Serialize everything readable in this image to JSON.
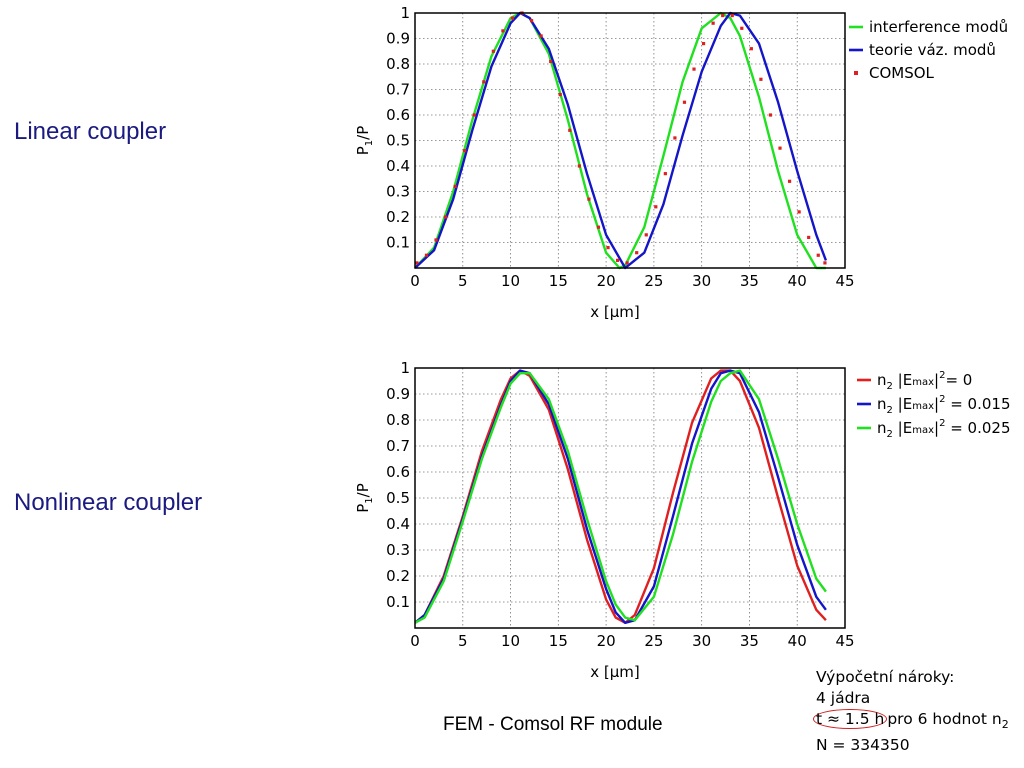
{
  "labels": {
    "linear": "Linear coupler",
    "nonlinear": "Nonlinear coupler"
  },
  "footer": {
    "caption": "FEM - Comsol RF module",
    "notes_title": "Výpočetní nároky:",
    "notes_cores": "4 jádra",
    "notes_time": "t ≈ 1.5 h",
    "notes_time_rest": "pro 6 hodnot n",
    "notes_time_sub": "2",
    "notes_n": "N = 334350"
  },
  "colors": {
    "red": "#e02020",
    "blue": "#1414c8",
    "green": "#20e020",
    "label_navy": "#1a1a80"
  },
  "chart_data": [
    {
      "type": "line",
      "xlabel": "x [μm]",
      "ylabel": "P",
      "ylabel_sub": "1",
      "ylabel_tail": "/P",
      "xlim": [
        0,
        45
      ],
      "ylim": [
        0,
        1
      ],
      "xticks": [
        0,
        5,
        10,
        15,
        20,
        25,
        30,
        35,
        40,
        45
      ],
      "yticks": [
        0.1,
        0.2,
        0.3,
        0.4,
        0.5,
        0.6,
        0.7,
        0.8,
        0.9,
        1
      ],
      "grid": true,
      "legend_position": "right",
      "series": [
        {
          "name": "interference modů",
          "color": "#20e020",
          "style": "line",
          "x": [
            0,
            2,
            4,
            6,
            8,
            10,
            11,
            12,
            14,
            16,
            18,
            20,
            21.4,
            22,
            24,
            26,
            28,
            30,
            32,
            33,
            34,
            36,
            38,
            40,
            42,
            43
          ],
          "y": [
            0.0,
            0.08,
            0.3,
            0.58,
            0.83,
            0.98,
            1.0,
            0.98,
            0.84,
            0.58,
            0.29,
            0.06,
            0.0,
            0.01,
            0.16,
            0.44,
            0.73,
            0.94,
            1.0,
            0.98,
            0.91,
            0.67,
            0.38,
            0.13,
            0.0,
            0.0
          ]
        },
        {
          "name": "teorie váz. modů",
          "color": "#1414c8",
          "style": "line",
          "x": [
            0,
            2,
            4,
            6,
            8,
            10,
            11,
            12,
            14,
            16,
            18,
            20,
            22,
            24,
            26,
            28,
            30,
            32,
            33,
            34,
            36,
            38,
            40,
            42,
            43
          ],
          "y": [
            0.0,
            0.07,
            0.27,
            0.54,
            0.79,
            0.96,
            1.0,
            0.98,
            0.86,
            0.64,
            0.37,
            0.13,
            0.0,
            0.06,
            0.25,
            0.52,
            0.77,
            0.95,
            1.0,
            0.99,
            0.88,
            0.65,
            0.38,
            0.13,
            0.03
          ]
        },
        {
          "name": "COMSOL",
          "color": "#e02020",
          "style": "points",
          "x": [
            0.2,
            1.2,
            2.2,
            3.2,
            4.2,
            5.2,
            6.2,
            7.2,
            8.2,
            9.2,
            10.2,
            11.2,
            12.2,
            13.2,
            14.2,
            15.2,
            16.2,
            17.2,
            18.2,
            19.2,
            20.2,
            21.2,
            22.2,
            23.2,
            24.2,
            25.2,
            26.2,
            27.2,
            28.2,
            29.2,
            30.2,
            31.2,
            32.2,
            33.2,
            34.2,
            35.2,
            36.2,
            37.2,
            38.2,
            39.2,
            40.2,
            41.2,
            42.2,
            42.9
          ],
          "y": [
            0.02,
            0.05,
            0.11,
            0.2,
            0.32,
            0.46,
            0.6,
            0.73,
            0.85,
            0.93,
            0.98,
            1.0,
            0.97,
            0.91,
            0.81,
            0.68,
            0.54,
            0.4,
            0.27,
            0.16,
            0.08,
            0.03,
            0.02,
            0.06,
            0.13,
            0.24,
            0.37,
            0.51,
            0.65,
            0.78,
            0.88,
            0.96,
            0.99,
            0.99,
            0.94,
            0.86,
            0.74,
            0.6,
            0.47,
            0.34,
            0.22,
            0.12,
            0.05,
            0.02
          ]
        }
      ]
    },
    {
      "type": "line",
      "xlabel": "x [μm]",
      "ylabel": "P",
      "ylabel_sub": "1",
      "ylabel_tail": "/P",
      "xlim": [
        0,
        45
      ],
      "ylim": [
        0,
        1
      ],
      "xticks": [
        0,
        5,
        10,
        15,
        20,
        25,
        30,
        35,
        40,
        45
      ],
      "yticks": [
        0.1,
        0.2,
        0.3,
        0.4,
        0.5,
        0.6,
        0.7,
        0.8,
        0.9,
        1
      ],
      "grid": true,
      "legend_position": "right",
      "legend_entries": [
        {
          "prefix": "n",
          "sub": "2",
          "mid": " |E",
          "esub": "max",
          "sup": "2",
          "suffix": "= 0"
        },
        {
          "prefix": "n",
          "sub": "2",
          "mid": " |E",
          "esub": "max",
          "sup": "2",
          "suffix": " = 0.015"
        },
        {
          "prefix": "n",
          "sub": "2",
          "mid": " |E",
          "esub": "max",
          "sup": "2",
          "suffix": " = 0.025"
        }
      ],
      "series": [
        {
          "color": "#e02020",
          "style": "line",
          "x": [
            0,
            1,
            3,
            5,
            7,
            9,
            10,
            11,
            12,
            14,
            16,
            18,
            20,
            21,
            22,
            23,
            25,
            27,
            29,
            31,
            32,
            33,
            34,
            36,
            38,
            40,
            42,
            43
          ],
          "y": [
            0.02,
            0.05,
            0.2,
            0.43,
            0.68,
            0.88,
            0.96,
            0.99,
            0.97,
            0.84,
            0.61,
            0.34,
            0.11,
            0.04,
            0.02,
            0.05,
            0.23,
            0.52,
            0.79,
            0.96,
            0.99,
            0.99,
            0.95,
            0.77,
            0.5,
            0.24,
            0.07,
            0.03
          ]
        },
        {
          "color": "#1414c8",
          "style": "line",
          "x": [
            0,
            1,
            3,
            5,
            7,
            9,
            10,
            11,
            12,
            14,
            16,
            18,
            20,
            21,
            22,
            23,
            25,
            27,
            29,
            31,
            32,
            33,
            34,
            36,
            38,
            40,
            42,
            43
          ],
          "y": [
            0.02,
            0.05,
            0.19,
            0.42,
            0.66,
            0.86,
            0.95,
            0.99,
            0.98,
            0.86,
            0.65,
            0.38,
            0.15,
            0.06,
            0.02,
            0.03,
            0.16,
            0.43,
            0.71,
            0.92,
            0.98,
            0.99,
            0.98,
            0.83,
            0.58,
            0.32,
            0.12,
            0.07
          ]
        },
        {
          "color": "#20e020",
          "style": "line",
          "x": [
            0,
            1,
            3,
            5,
            7,
            9,
            10,
            11,
            12,
            14,
            16,
            18,
            20,
            21,
            22,
            23,
            25,
            27,
            29,
            31,
            32,
            33,
            34,
            36,
            38,
            40,
            42,
            43
          ],
          "y": [
            0.02,
            0.04,
            0.18,
            0.41,
            0.65,
            0.85,
            0.94,
            0.98,
            0.98,
            0.88,
            0.68,
            0.42,
            0.18,
            0.09,
            0.04,
            0.03,
            0.12,
            0.36,
            0.64,
            0.87,
            0.95,
            0.98,
            0.99,
            0.88,
            0.65,
            0.4,
            0.19,
            0.14
          ]
        }
      ]
    }
  ]
}
